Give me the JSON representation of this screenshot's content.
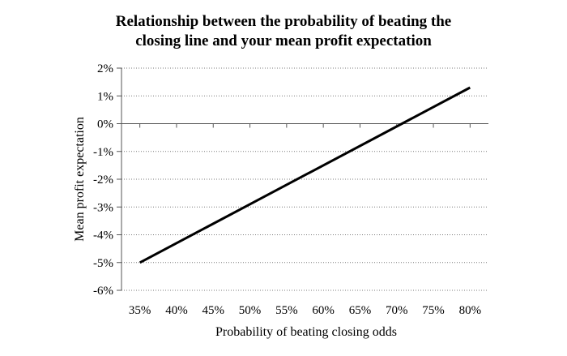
{
  "chart_data": {
    "type": "line",
    "title_lines": [
      "Relationship between the probability of beating the",
      "closing line and your mean profit expectation"
    ],
    "xlabel": "Probability of beating closing odds",
    "ylabel": "Mean profit expectation",
    "x_ticks": [
      35,
      40,
      45,
      50,
      55,
      60,
      65,
      70,
      75,
      80
    ],
    "x_tick_labels": [
      "35%",
      "40%",
      "45%",
      "50%",
      "55%",
      "60%",
      "65%",
      "70%",
      "75%",
      "80%"
    ],
    "y_ticks": [
      2,
      1,
      0,
      -1,
      -2,
      -3,
      -4,
      -5,
      -6
    ],
    "y_tick_labels": [
      "2%",
      "1%",
      "0%",
      "-1%",
      "-2%",
      "-3%",
      "-4%",
      "-5%",
      "-6%"
    ],
    "xlim": [
      32.5,
      82.5
    ],
    "ylim": [
      -6,
      2
    ],
    "grid": "horizontal dotted",
    "legend": "none",
    "series": [
      {
        "color": "#000000",
        "x": [
          35,
          80
        ],
        "y": [
          -5.0,
          1.3
        ]
      }
    ]
  }
}
